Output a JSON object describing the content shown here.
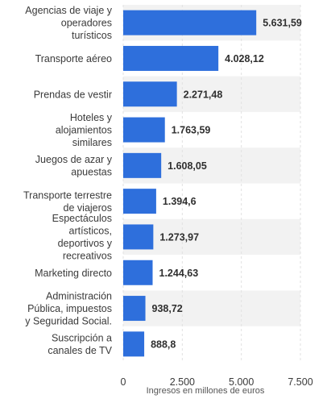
{
  "chart_data": {
    "type": "bar",
    "orientation": "horizontal",
    "categories": [
      "Agencias de viaje y operadores turísticos",
      "Transporte aéreo",
      "Prendas de vestir",
      "Hoteles y alojamientos similares",
      "Juegos de azar y apuestas",
      "Transporte terrestre de viajeros",
      "Espectáculos artísticos, deportivos y recreativos",
      "Marketing directo",
      "Administración Pública, impuestos y Seguridad Social.",
      "Suscripción a canales de TV"
    ],
    "category_lines": [
      [
        "Agencias de viaje y",
        "operadores",
        "turísticos"
      ],
      [
        "Transporte aéreo"
      ],
      [
        "Prendas de vestir"
      ],
      [
        "Hoteles y",
        "alojamientos",
        "similares"
      ],
      [
        "Juegos de azar y",
        "apuestas"
      ],
      [
        "Transporte terrestre",
        "de viajeros"
      ],
      [
        "Espectáculos",
        "artísticos,",
        "deportivos y",
        "recreativos"
      ],
      [
        "Marketing directo"
      ],
      [
        "Administración",
        "Pública, impuestos",
        "y Seguridad Social."
      ],
      [
        "Suscripción a",
        "canales de TV"
      ]
    ],
    "values": [
      5631.59,
      4028.12,
      2271.48,
      1763.59,
      1608.05,
      1394.6,
      1273.97,
      1244.63,
      938.72,
      888.8
    ],
    "value_labels": [
      "5.631,59",
      "4.028,12",
      "2.271,48",
      "1.763,59",
      "1.608,05",
      "1.394,6",
      "1.273,97",
      "1.244,63",
      "938,72",
      "888,8"
    ],
    "xlim": [
      0,
      7500
    ],
    "xticks": [
      0,
      2500,
      5000,
      7500
    ],
    "xtick_labels": [
      "0",
      "2.500",
      "5.000",
      "7.500"
    ],
    "xlabel": "Ingresos en millones de euros",
    "ylabel": "",
    "title": "",
    "bar_color": "#2e6fdc",
    "band_color": "#f2f2f2",
    "grid": true
  }
}
